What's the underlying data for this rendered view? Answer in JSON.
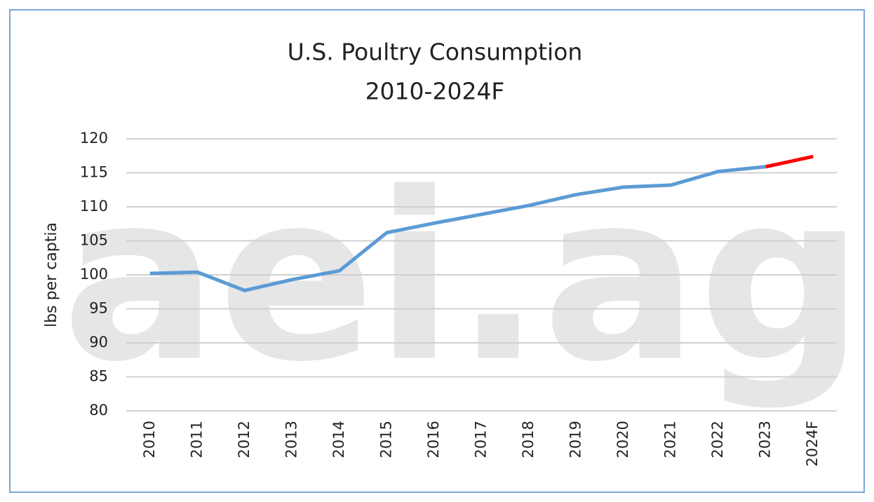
{
  "chart_data": {
    "type": "line",
    "title": "U.S. Poultry Consumption",
    "subtitle": "2010-2024F",
    "y_label": "lbs per captia",
    "watermark": "aei.ag",
    "categories": [
      "2010",
      "2011",
      "2012",
      "2013",
      "2014",
      "2015",
      "2016",
      "2017",
      "2018",
      "2019",
      "2020",
      "2021",
      "2022",
      "2023",
      "2024F"
    ],
    "series": [
      {
        "color": "#5b9bd5",
        "values": [
          100.2,
          100.4,
          97.7,
          99.3,
          100.6,
          106.2,
          107.6,
          108.9,
          110.2,
          111.8,
          112.9,
          113.2,
          115.2,
          115.9,
          null
        ]
      },
      {
        "color": "#ff0000",
        "values": [
          null,
          null,
          null,
          null,
          null,
          null,
          null,
          null,
          null,
          null,
          null,
          null,
          null,
          115.9,
          117.4
        ]
      }
    ],
    "ylim": [
      80,
      120
    ],
    "yticks": [
      80,
      85,
      90,
      95,
      100,
      105,
      110,
      115,
      120
    ],
    "grid": true
  }
}
